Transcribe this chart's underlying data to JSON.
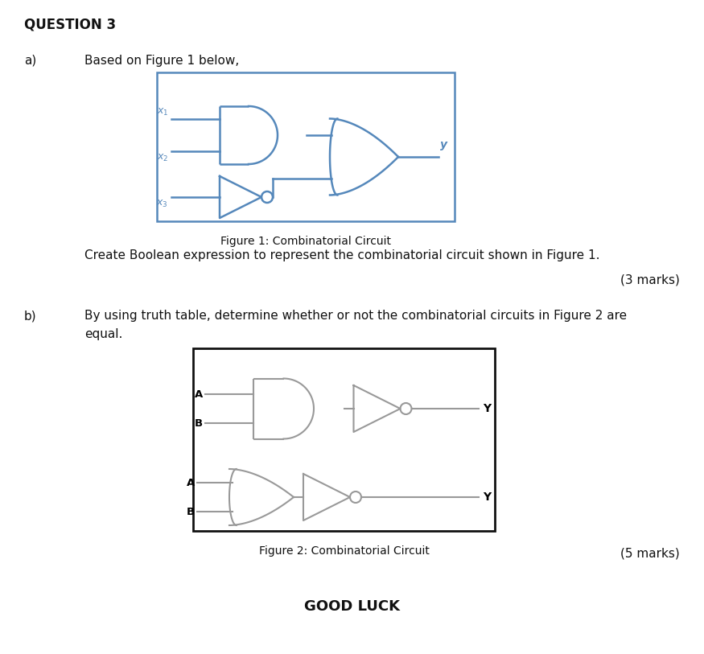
{
  "title": "QUESTION 3",
  "fig1_caption": "Figure 1: Combinatorial Circuit",
  "fig2_caption": "Figure 2: Combinatorial Circuit",
  "part_a_label": "a)",
  "part_b_label": "b)",
  "part_a_text": "Based on Figure 1 below,",
  "part_b_text1": "By using truth table, determine whether or not the combinatorial circuits in Figure 2 are",
  "part_b_text2": "equal.",
  "marks_a": "(3 marks)",
  "marks_b": "(5 marks)",
  "question_a_text": "Create Boolean expression to represent the combinatorial circuit shown in Figure 1.",
  "good_luck": "GOOD LUCK",
  "fig1_border_color": "#5588bb",
  "fig2_border_color": "#111111",
  "gate_color_fig1": "#5588bb",
  "gate_color_fig2": "#999999",
  "bg_color": "#ffffff",
  "text_color": "#111111"
}
